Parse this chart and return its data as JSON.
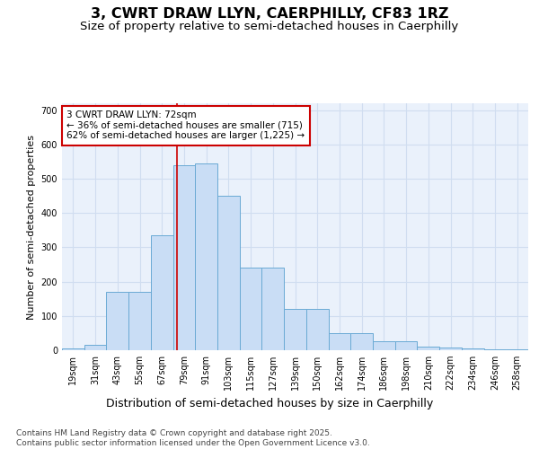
{
  "title1": "3, CWRT DRAW LLYN, CAERPHILLY, CF83 1RZ",
  "title2": "Size of property relative to semi-detached houses in Caerphilly",
  "xlabel": "Distribution of semi-detached houses by size in Caerphilly",
  "ylabel": "Number of semi-detached properties",
  "categories": [
    "19sqm",
    "31sqm",
    "43sqm",
    "55sqm",
    "67sqm",
    "79sqm",
    "91sqm",
    "103sqm",
    "115sqm",
    "127sqm",
    "139sqm",
    "150sqm",
    "162sqm",
    "174sqm",
    "186sqm",
    "198sqm",
    "210sqm",
    "222sqm",
    "234sqm",
    "246sqm",
    "258sqm"
  ],
  "values": [
    5,
    15,
    170,
    170,
    335,
    540,
    545,
    450,
    240,
    240,
    120,
    120,
    50,
    50,
    25,
    25,
    10,
    8,
    5,
    2,
    2
  ],
  "bar_color": "#c9ddf5",
  "bar_edge_color": "#6aaad4",
  "bg_color": "#eaf1fb",
  "grid_color": "#d0ddf0",
  "vline_x": 4.67,
  "vline_color": "#cc0000",
  "annotation_text": "3 CWRT DRAW LLYN: 72sqm\n← 36% of semi-detached houses are smaller (715)\n62% of semi-detached houses are larger (1,225) →",
  "annotation_box_color": "#cc0000",
  "footnote": "Contains HM Land Registry data © Crown copyright and database right 2025.\nContains public sector information licensed under the Open Government Licence v3.0.",
  "ylim": [
    0,
    720
  ],
  "yticks": [
    0,
    100,
    200,
    300,
    400,
    500,
    600,
    700
  ],
  "title1_fontsize": 11.5,
  "title2_fontsize": 9.5,
  "xlabel_fontsize": 9,
  "ylabel_fontsize": 8,
  "tick_fontsize": 7,
  "annot_fontsize": 7.5,
  "footnote_fontsize": 6.5
}
